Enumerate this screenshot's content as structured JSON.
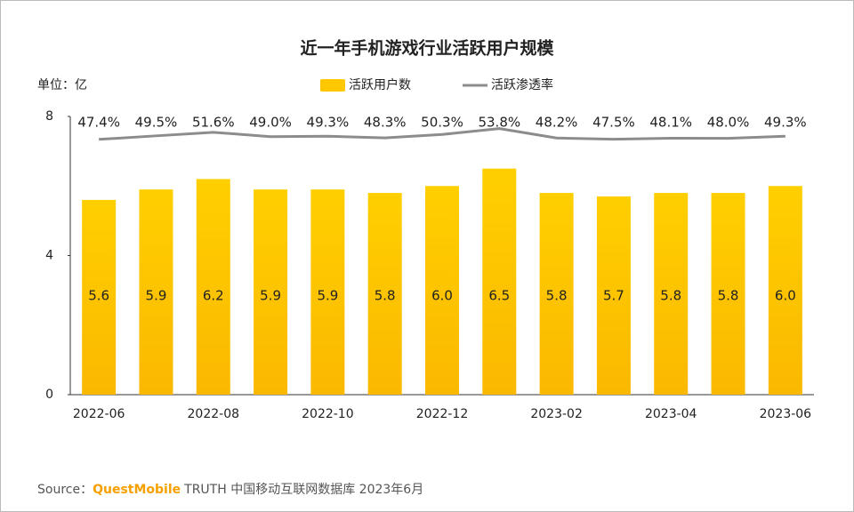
{
  "chart_data": {
    "type": "bar-line",
    "title": "近一年手机游戏行业活跃用户规模",
    "y_axis_label": "单位：亿",
    "categories": [
      "2022-06",
      null,
      "2022-08",
      null,
      "2022-10",
      null,
      "2022-12",
      null,
      "2023-02",
      null,
      "2023-04",
      null,
      "2023-06"
    ],
    "series": [
      {
        "name": "活跃用户数",
        "type": "bar",
        "color": "#ffc700",
        "values": [
          5.6,
          5.9,
          6.2,
          5.9,
          5.9,
          5.8,
          6.0,
          6.5,
          5.8,
          5.7,
          5.8,
          5.8,
          6.0
        ],
        "value_labels": [
          "5.6",
          "5.9",
          "6.2",
          "5.9",
          "5.9",
          "5.8",
          "6.0",
          "6.5",
          "5.8",
          "5.7",
          "5.8",
          "5.8",
          "6.0"
        ]
      },
      {
        "name": "活跃渗透率",
        "type": "line",
        "axis": "y2",
        "color": "#8c8c8c",
        "values": [
          47.4,
          49.5,
          51.6,
          49.0,
          49.3,
          48.3,
          50.3,
          53.8,
          48.2,
          47.5,
          48.1,
          48.0,
          49.3
        ],
        "value_labels": [
          "47.4%",
          "49.5%",
          "51.6%",
          "49.0%",
          "49.3%",
          "48.3%",
          "50.3%",
          "53.8%",
          "48.2%",
          "47.5%",
          "48.1%",
          "48.0%",
          "49.3%"
        ]
      }
    ],
    "ylim": [
      0,
      8
    ],
    "yticks": [
      0,
      4,
      8
    ],
    "y2lim": [
      -104,
      61
    ],
    "source": {
      "prefix": "Source：",
      "brand": "QuestMobile",
      "text": "TRUTH 中国移动互联网数据库 2023年6月"
    }
  }
}
